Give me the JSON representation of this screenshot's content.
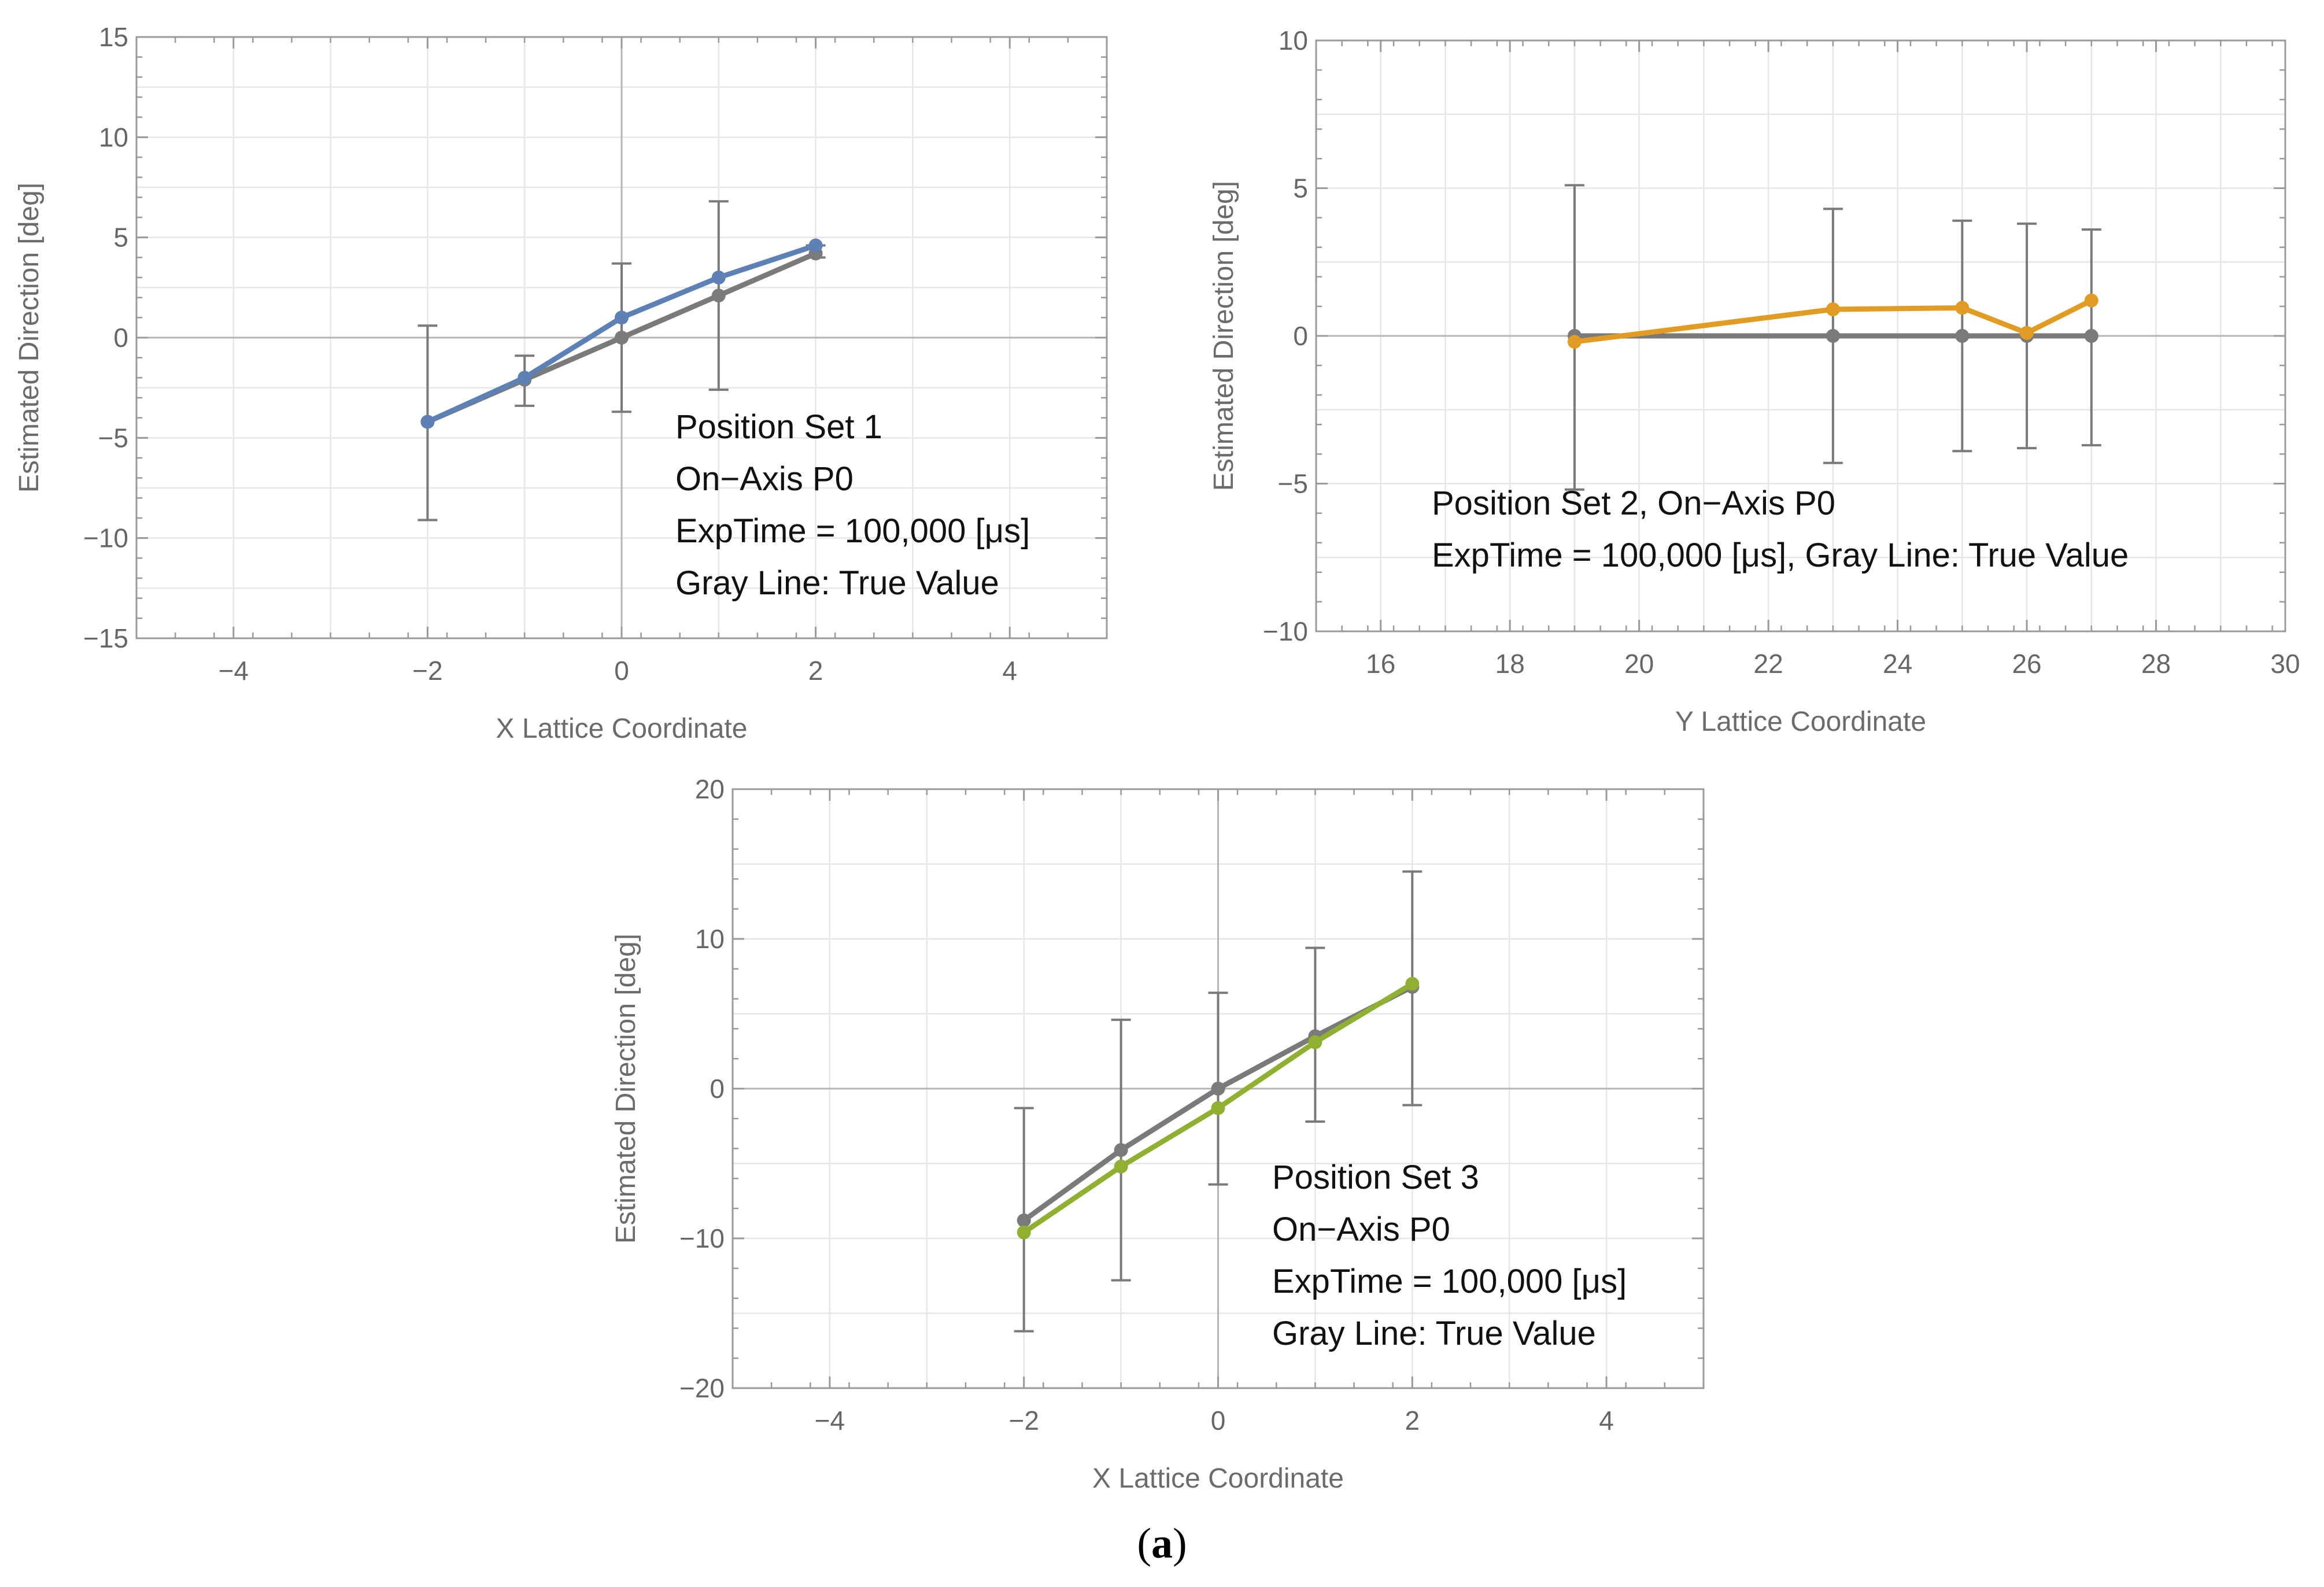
{
  "figure_caption": {
    "open": "(",
    "letter": "a",
    "close": ")"
  },
  "colors": {
    "gray": "#7a7a7a",
    "blue": "#5e81b5",
    "orange": "#e19c24",
    "green": "#8fb032",
    "grid": "#e6e6e6",
    "frame": "#999999",
    "tick_text": "#666666",
    "label_text": "#6b6b6b"
  },
  "chart_data": [
    {
      "type": "line",
      "title": "",
      "xlabel": "X Lattice Coordinate",
      "ylabel": "Estimated Direction [deg]",
      "xlim": [
        -5,
        5
      ],
      "ylim": [
        -15,
        15
      ],
      "xticks": [
        -4,
        -2,
        0,
        2,
        4
      ],
      "yticks": [
        -15,
        -10,
        -5,
        0,
        5,
        10,
        15
      ],
      "grid": true,
      "series": [
        {
          "name": "True Value",
          "color": "gray",
          "x": [
            -2,
            -1,
            0,
            1,
            2
          ],
          "y": [
            -4.2,
            -2.1,
            0,
            2.1,
            4.2
          ]
        },
        {
          "name": "Estimated",
          "color": "blue",
          "x": [
            -2,
            -1,
            0,
            1,
            2
          ],
          "y": [
            -4.2,
            -2.0,
            1.0,
            3.0,
            4.6
          ],
          "error_low": [
            -9.1,
            -3.4,
            -3.7,
            -2.6,
            4.0
          ],
          "error_high": [
            0.6,
            -0.9,
            3.7,
            6.8,
            4.6
          ]
        }
      ],
      "annotation": [
        "Position Set 1",
        "On−Axis P0",
        "ExpTime = 100,000 [μs]",
        "Gray Line: True Value"
      ]
    },
    {
      "type": "line",
      "title": "",
      "xlabel": "Y Lattice Coordinate",
      "ylabel": "Estimated Direction [deg]",
      "xlim": [
        15,
        30
      ],
      "ylim": [
        -10,
        10
      ],
      "xticks": [
        16,
        18,
        20,
        22,
        24,
        26,
        28,
        30
      ],
      "yticks": [
        -10,
        -5,
        0,
        5,
        10
      ],
      "grid": true,
      "series": [
        {
          "name": "True Value",
          "color": "gray",
          "x": [
            19,
            23,
            25,
            26,
            27
          ],
          "y": [
            0,
            0,
            0,
            0,
            0
          ]
        },
        {
          "name": "Estimated",
          "color": "orange",
          "x": [
            19,
            23,
            25,
            26,
            27
          ],
          "y": [
            -0.2,
            0.9,
            0.95,
            0.1,
            1.2
          ],
          "error_low": [
            -5.2,
            -4.3,
            -3.9,
            -3.8,
            -3.7
          ],
          "error_high": [
            5.1,
            4.3,
            3.9,
            3.8,
            3.6
          ]
        }
      ],
      "annotation": [
        "Position Set 2, On−Axis P0",
        "ExpTime = 100,000 [μs], Gray Line: True Value"
      ]
    },
    {
      "type": "line",
      "title": "",
      "xlabel": "X Lattice Coordinate",
      "ylabel": "Estimated Direction [deg]",
      "xlim": [
        -5,
        5
      ],
      "ylim": [
        -20,
        20
      ],
      "xticks": [
        -4,
        -2,
        0,
        2,
        4
      ],
      "yticks": [
        -20,
        -10,
        0,
        10,
        20
      ],
      "grid": true,
      "series": [
        {
          "name": "True Value",
          "color": "gray",
          "x": [
            -2,
            -1,
            0,
            1,
            2
          ],
          "y": [
            -8.8,
            -4.1,
            0,
            3.5,
            6.8
          ]
        },
        {
          "name": "Estimated",
          "color": "green",
          "x": [
            -2,
            -1,
            0,
            1,
            2
          ],
          "y": [
            -9.6,
            -5.2,
            -1.3,
            3.1,
            7.0
          ],
          "error_low": [
            -16.2,
            -12.8,
            -6.4,
            -2.2,
            -1.1
          ],
          "error_high": [
            -1.3,
            4.6,
            6.4,
            9.4,
            14.5
          ]
        }
      ],
      "annotation": [
        "Position Set 3",
        "On−Axis P0",
        "ExpTime = 100,000 [μs]",
        "Gray Line: True Value"
      ]
    }
  ]
}
